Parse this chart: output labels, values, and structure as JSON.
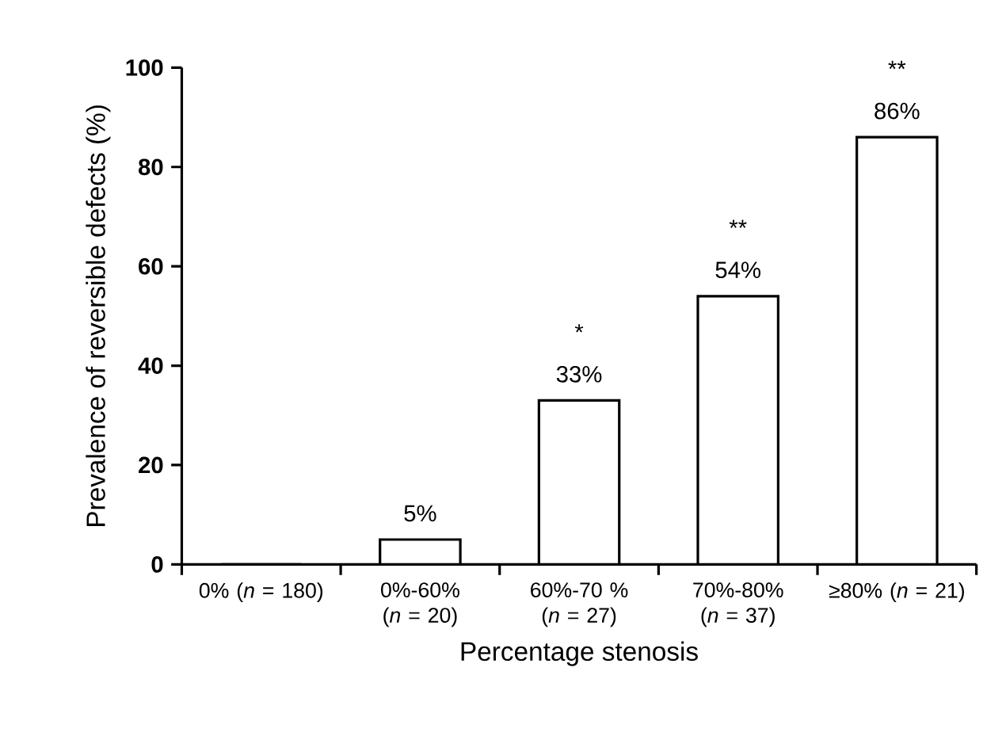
{
  "chart_data": {
    "type": "bar",
    "xlabel": "Percentage stenosis",
    "ylabel": "Prevalence of reversible defects (%)",
    "categories": [
      "0% (*n* = 180)",
      "0%-60% (*n* = 20)",
      "60%-70 % (*n* = 27)",
      "70%-80% (*n* = 37)",
      "≥80% (*n* = 21)"
    ],
    "values": [
      0,
      5,
      33,
      54,
      86
    ],
    "value_labels": [
      null,
      "5%",
      "33%",
      "54%",
      "86%"
    ],
    "color": "#ffffff",
    "ylim": [
      0,
      100
    ],
    "yticks": [
      0,
      20,
      40,
      60,
      80,
      100
    ],
    "annotations": [
      {
        "text": "*",
        "x": "60%-70 % (*n* = 27)",
        "y": 33
      },
      {
        "text": "**",
        "x": "70%-80% (*n* = 37)",
        "y": 54
      },
      {
        "text": "**",
        "x": "≥80% (*n* = 21)",
        "y": 86
      }
    ]
  }
}
